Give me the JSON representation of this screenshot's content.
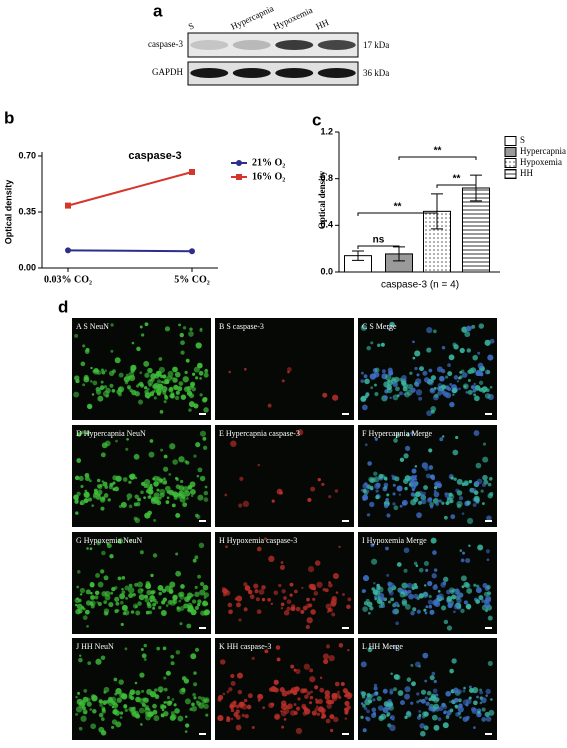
{
  "panel_a": {
    "label": "a",
    "lanes": [
      "S",
      "Hypercapnia",
      "Hypoxemia",
      "HH"
    ],
    "rows": [
      {
        "name": "caspase-3",
        "size": "17 kDa"
      },
      {
        "name": "GAPDH",
        "size": "36 kDa"
      }
    ]
  },
  "chart_data": [
    {
      "type": "line",
      "panel_label": "b",
      "title": "caspase-3",
      "ylabel": "Optical density",
      "categories": [
        "0.03% CO₂",
        "5% CO₂"
      ],
      "series": [
        {
          "name": "21% O₂",
          "color": "#2e2e8a",
          "marker": "circle",
          "values": [
            0.11,
            0.105
          ]
        },
        {
          "name": "16% O₂",
          "color": "#d6352b",
          "marker": "square",
          "values": [
            0.39,
            0.6
          ]
        }
      ],
      "ylim": [
        0,
        0.7
      ],
      "yticks": [
        {
          "value": 0,
          "label": "0.00"
        },
        0.35,
        {
          "value": 0.7,
          "label": "0.70"
        }
      ]
    },
    {
      "type": "bar",
      "panel_label": "c",
      "ylabel": "Optical density",
      "xlabel": "caspase-3 (n = 4)",
      "series": [
        {
          "name": "S",
          "color": "#ffffff",
          "values": [
            0.14
          ],
          "errors": [
            0.04
          ]
        },
        {
          "name": "Hypercapnia",
          "color": "#9a9a9a",
          "values": [
            0.155
          ],
          "errors": [
            0.06
          ]
        },
        {
          "name": "Hypoxemia",
          "color": "#ffffff",
          "pattern": "dots",
          "values": [
            0.52
          ],
          "errors": [
            0.15
          ]
        },
        {
          "name": "HH",
          "color": "#ffffff",
          "pattern": "horizontal-lines",
          "values": [
            0.72
          ],
          "errors": [
            0.11
          ]
        }
      ],
      "annotations": [
        "ns",
        "**",
        "**",
        "**"
      ],
      "ylim": [
        0,
        1.2
      ],
      "yticks": [
        {
          "value": 0,
          "label": "0.0"
        },
        0.4,
        0.8,
        1.2
      ]
    }
  ],
  "panel_d": {
    "label": "d",
    "images": [
      "A S NeuN",
      "B S caspase-3",
      "C S Merge",
      "D Hypercapnia NeuN",
      "E Hypercapnia caspase-3",
      "F Hypercapnia Merge",
      "G Hypoxemia NeuN",
      "H Hypoxemia caspase-3",
      "I Hypoxemia Merge",
      "J HH NeuN",
      "K HH caspase-3",
      "L HH Merge"
    ]
  }
}
